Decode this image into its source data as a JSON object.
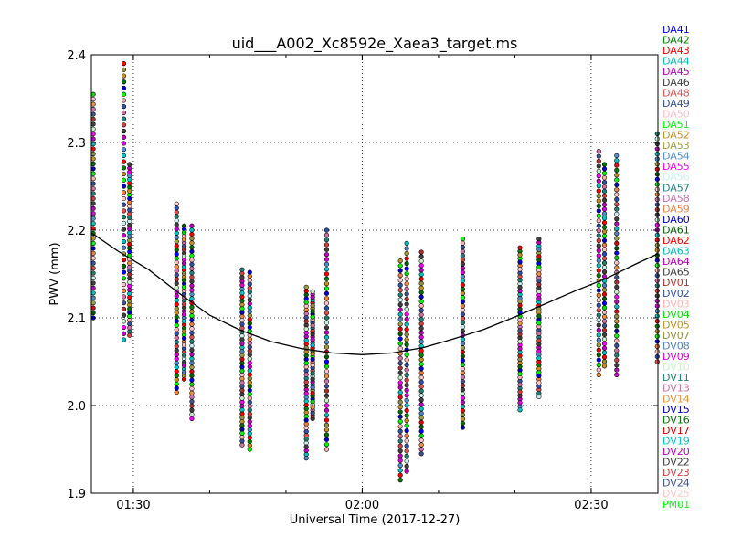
{
  "chart_data": {
    "type": "scatter",
    "title": "uid___A002_Xc8592e_Xaea3_target.ms",
    "xlabel": "Universal Time (2017-12-27)",
    "ylabel": "PWV (mm)",
    "xlim": [
      "01:24:30",
      "02:38:45"
    ],
    "ylim": [
      1.9,
      2.4
    ],
    "x_ticks": [
      "01:30",
      "02:00",
      "02:30"
    ],
    "y_ticks": [
      "1.9",
      "2.0",
      "2.1",
      "2.2",
      "2.3",
      "2.4"
    ],
    "grid": true,
    "legend_placement": "right, outside plot",
    "fit_line": {
      "name": "",
      "x": [
        "01:24:30",
        "01:28:00",
        "01:32:00",
        "01:36:00",
        "01:40:00",
        "01:44:00",
        "01:48:00",
        "01:52:00",
        "01:56:00",
        "02:00:00",
        "02:04:00",
        "02:08:00",
        "02:12:00",
        "02:16:00",
        "02:20:00",
        "02:24:00",
        "02:28:00",
        "02:32:00",
        "02:36:00",
        "02:38:45"
      ],
      "y": [
        2.197,
        2.176,
        2.155,
        2.128,
        2.103,
        2.086,
        2.073,
        2.065,
        2.06,
        2.058,
        2.06,
        2.066,
        2.076,
        2.087,
        2.101,
        2.116,
        2.131,
        2.145,
        2.162,
        2.173
      ]
    },
    "series": [
      {
        "name": "DA41",
        "color": "#0000ff"
      },
      {
        "name": "DA42",
        "color": "#008000"
      },
      {
        "name": "DA43",
        "color": "#ff0000"
      },
      {
        "name": "DA44",
        "color": "#00bfbf"
      },
      {
        "name": "DA45",
        "color": "#bf00bf"
      },
      {
        "name": "DA46",
        "color": "#404040"
      },
      {
        "name": "DA48",
        "color": "#e05050"
      },
      {
        "name": "DA49",
        "color": "#3050a0"
      },
      {
        "name": "DA50",
        "color": "#ffc0cb"
      },
      {
        "name": "DA51",
        "color": "#00ff00"
      },
      {
        "name": "DA52",
        "color": "#c89020"
      },
      {
        "name": "DA53",
        "color": "#a0a040"
      },
      {
        "name": "DA54",
        "color": "#5090d0"
      },
      {
        "name": "DA55",
        "color": "#ff00ff"
      },
      {
        "name": "DA56",
        "color": "#c8f0f0"
      },
      {
        "name": "DA57",
        "color": "#208080"
      },
      {
        "name": "DA58",
        "color": "#d070b0"
      },
      {
        "name": "DA59",
        "color": "#f08040"
      },
      {
        "name": "DA60",
        "color": "#0000c0"
      },
      {
        "name": "DA61",
        "color": "#006000"
      },
      {
        "name": "DA62",
        "color": "#ff0000"
      },
      {
        "name": "DA63",
        "color": "#00c0c0"
      },
      {
        "name": "DA64",
        "color": "#c000c0"
      },
      {
        "name": "DA65",
        "color": "#404040"
      },
      {
        "name": "DV01",
        "color": "#b03030"
      },
      {
        "name": "DV02",
        "color": "#3050b0"
      },
      {
        "name": "DV03",
        "color": "#ffb0b0"
      },
      {
        "name": "DV04",
        "color": "#00e000"
      },
      {
        "name": "DV05",
        "color": "#c09020"
      },
      {
        "name": "DV07",
        "color": "#909040"
      },
      {
        "name": "DV08",
        "color": "#5080c0"
      },
      {
        "name": "DV09",
        "color": "#e000e0"
      },
      {
        "name": "DV10",
        "color": "#c8f0c8"
      },
      {
        "name": "DV11",
        "color": "#208070"
      },
      {
        "name": "DV13",
        "color": "#d070a0"
      },
      {
        "name": "DV14",
        "color": "#f09040"
      },
      {
        "name": "DV15",
        "color": "#0000d0"
      },
      {
        "name": "DV16",
        "color": "#007000"
      },
      {
        "name": "DV17",
        "color": "#e00000"
      },
      {
        "name": "DV19",
        "color": "#00c8c8"
      },
      {
        "name": "DV20",
        "color": "#c000c0"
      },
      {
        "name": "DV22",
        "color": "#404040"
      },
      {
        "name": "DV23",
        "color": "#d04040"
      },
      {
        "name": "DV24",
        "color": "#405090"
      },
      {
        "name": "DV25",
        "color": "#ffc8c8"
      },
      {
        "name": "PM01",
        "color": "#00ff00"
      }
    ],
    "scans": [
      {
        "t": "01:24:45",
        "ymin": 2.1,
        "ymax": 2.355
      },
      {
        "t": "01:28:45",
        "ymin": 2.075,
        "ymax": 2.39
      },
      {
        "t": "01:29:30",
        "ymin": 2.08,
        "ymax": 2.275
      },
      {
        "t": "01:35:40",
        "ymin": 2.015,
        "ymax": 2.23
      },
      {
        "t": "01:36:40",
        "ymin": 2.03,
        "ymax": 2.205
      },
      {
        "t": "01:37:40",
        "ymin": 1.985,
        "ymax": 2.205
      },
      {
        "t": "01:44:15",
        "ymin": 1.955,
        "ymax": 2.155
      },
      {
        "t": "01:45:15",
        "ymin": 1.95,
        "ymax": 2.152
      },
      {
        "t": "01:52:40",
        "ymin": 1.94,
        "ymax": 2.135
      },
      {
        "t": "01:53:30",
        "ymin": 1.985,
        "ymax": 2.13
      },
      {
        "t": "01:55:20",
        "ymin": 1.95,
        "ymax": 2.2
      },
      {
        "t": "02:05:00",
        "ymin": 1.915,
        "ymax": 2.165
      },
      {
        "t": "02:05:50",
        "ymin": 1.925,
        "ymax": 2.185
      },
      {
        "t": "02:07:45",
        "ymin": 1.945,
        "ymax": 2.175
      },
      {
        "t": "02:13:10",
        "ymin": 1.975,
        "ymax": 2.19
      },
      {
        "t": "02:20:40",
        "ymin": 1.995,
        "ymax": 2.18
      },
      {
        "t": "02:23:10",
        "ymin": 2.01,
        "ymax": 2.19
      },
      {
        "t": "02:31:00",
        "ymin": 2.035,
        "ymax": 2.29
      },
      {
        "t": "02:31:45",
        "ymin": 2.045,
        "ymax": 2.275
      },
      {
        "t": "02:33:20",
        "ymin": 2.035,
        "ymax": 2.285
      },
      {
        "t": "02:38:40",
        "ymin": 2.05,
        "ymax": 2.31
      }
    ]
  }
}
